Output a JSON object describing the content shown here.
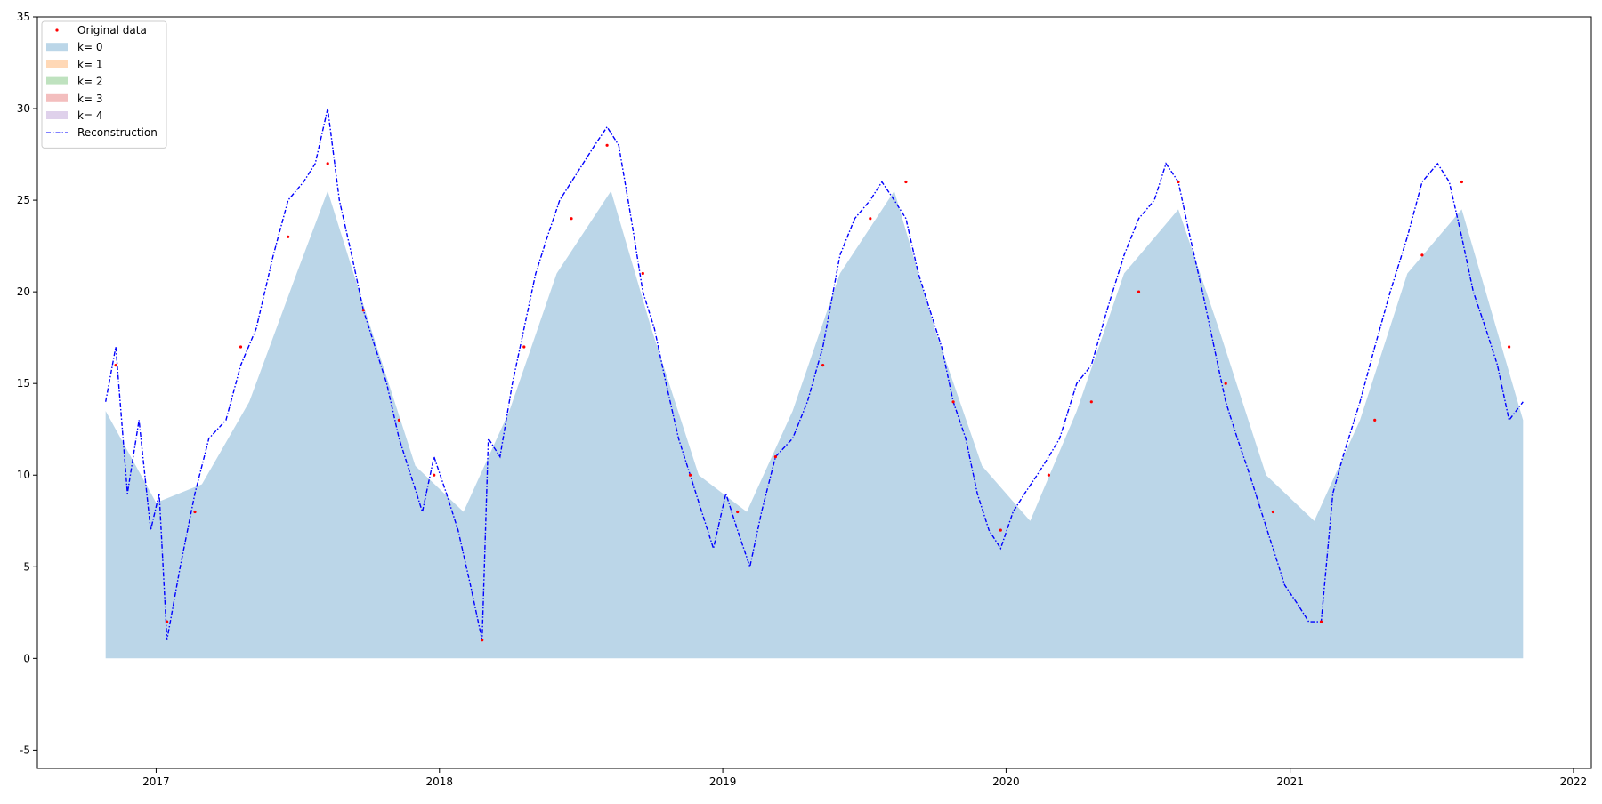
{
  "chart_data": {
    "type": "area",
    "title": "",
    "xlabel": "",
    "ylabel": "",
    "x_range": [
      "2016-08-01",
      "2022-01-24"
    ],
    "ylim": [
      -6,
      35
    ],
    "x_ticks": [
      "2017",
      "2018",
      "2019",
      "2020",
      "2021",
      "2022"
    ],
    "y_ticks": [
      -5,
      0,
      5,
      10,
      15,
      20,
      25,
      30,
      35
    ],
    "grid": false,
    "legend_position": "upper-left",
    "legend": [
      "Original data",
      "k= 0",
      "k= 1",
      "k= 2",
      "k= 3",
      "k= 4",
      "Reconstruction"
    ],
    "colors": {
      "original": "#ff0000",
      "k0": "#1f77b4",
      "k1": "#ff7f0e",
      "k2": "#2ca02c",
      "k3": "#d62728",
      "k4": "#9467bd",
      "reconstruction": "#0000ff"
    },
    "series": [
      {
        "name": "k= 0",
        "type": "area",
        "x": [
          "2016-10-28",
          "2017-01-01",
          "2017-03-01",
          "2017-05-01",
          "2017-07-01",
          "2017-08-10",
          "2017-10-01",
          "2017-12-01",
          "2018-02-01",
          "2018-04-01",
          "2018-06-01",
          "2018-08-10",
          "2018-10-01",
          "2018-12-01",
          "2019-02-01",
          "2019-04-01",
          "2019-06-01",
          "2019-08-10",
          "2019-10-01",
          "2019-12-01",
          "2020-02-01",
          "2020-04-01",
          "2020-06-01",
          "2020-08-10",
          "2020-10-01",
          "2020-12-01",
          "2021-02-01",
          "2021-04-01",
          "2021-06-01",
          "2021-08-10",
          "2021-10-28"
        ],
        "values": [
          13.5,
          8.5,
          9.5,
          14.0,
          21.0,
          25.5,
          18.5,
          10.5,
          8.0,
          13.5,
          21.0,
          25.5,
          18.0,
          10.0,
          8.0,
          13.5,
          21.0,
          25.5,
          18.0,
          10.5,
          7.5,
          13.5,
          21.0,
          24.5,
          18.0,
          10.0,
          7.5,
          13.0,
          21.0,
          24.5,
          13.0
        ]
      },
      {
        "name": "Reconstruction",
        "type": "line",
        "x": [
          "2016-10-28",
          "2016-11-10",
          "2016-11-25",
          "2016-12-10",
          "2016-12-25",
          "2017-01-05",
          "2017-01-15",
          "2017-02-01",
          "2017-02-20",
          "2017-03-10",
          "2017-04-01",
          "2017-04-20",
          "2017-05-10",
          "2017-06-01",
          "2017-06-20",
          "2017-07-10",
          "2017-07-25",
          "2017-08-10",
          "2017-08-25",
          "2017-09-10",
          "2017-09-25",
          "2017-10-10",
          "2017-10-25",
          "2017-11-10",
          "2017-11-25",
          "2017-12-10",
          "2017-12-25",
          "2018-01-10",
          "2018-01-25",
          "2018-02-10",
          "2018-02-25",
          "2018-03-05",
          "2018-03-20",
          "2018-04-05",
          "2018-04-20",
          "2018-05-05",
          "2018-05-20",
          "2018-06-05",
          "2018-06-20",
          "2018-07-05",
          "2018-07-20",
          "2018-08-05",
          "2018-08-20",
          "2018-09-05",
          "2018-09-20",
          "2018-10-05",
          "2018-10-20",
          "2018-11-05",
          "2018-11-20",
          "2018-12-05",
          "2018-12-20",
          "2019-01-05",
          "2019-01-20",
          "2019-02-05",
          "2019-02-20",
          "2019-03-10",
          "2019-04-01",
          "2019-04-20",
          "2019-05-10",
          "2019-06-01",
          "2019-06-20",
          "2019-07-10",
          "2019-07-25",
          "2019-08-10",
          "2019-08-25",
          "2019-09-10",
          "2019-09-25",
          "2019-10-10",
          "2019-10-25",
          "2019-11-10",
          "2019-11-25",
          "2019-12-10",
          "2019-12-25",
          "2020-01-10",
          "2020-01-25",
          "2020-02-10",
          "2020-02-25",
          "2020-03-10",
          "2020-04-01",
          "2020-04-20",
          "2020-05-10",
          "2020-06-01",
          "2020-06-20",
          "2020-07-10",
          "2020-07-25",
          "2020-08-10",
          "2020-08-25",
          "2020-09-10",
          "2020-09-25",
          "2020-10-10",
          "2020-10-25",
          "2020-11-10",
          "2020-11-25",
          "2020-12-10",
          "2020-12-25",
          "2021-01-10",
          "2021-01-25",
          "2021-02-10",
          "2021-02-25",
          "2021-03-10",
          "2021-04-01",
          "2021-04-20",
          "2021-05-10",
          "2021-06-01",
          "2021-06-20",
          "2021-07-10",
          "2021-07-25",
          "2021-08-10",
          "2021-08-25",
          "2021-09-10",
          "2021-09-25",
          "2021-10-10",
          "2021-10-28"
        ],
        "values": [
          14,
          17,
          9,
          13,
          7,
          9,
          1,
          5,
          9,
          12,
          13,
          16,
          18,
          22,
          25,
          26,
          27,
          30,
          25,
          22,
          19,
          17,
          15,
          12,
          10,
          8,
          11,
          9,
          7,
          4,
          1,
          12,
          11,
          15,
          18,
          21,
          23,
          25,
          26,
          27,
          28,
          29,
          28,
          24,
          20,
          18,
          15,
          12,
          10,
          8,
          6,
          9,
          7,
          5,
          8,
          11,
          12,
          14,
          17,
          22,
          24,
          25,
          26,
          25,
          24,
          21,
          19,
          17,
          14,
          12,
          9,
          7,
          6,
          8,
          9,
          10,
          11,
          12,
          15,
          16,
          19,
          22,
          24,
          25,
          27,
          26,
          23,
          20,
          17,
          14,
          12,
          10,
          8,
          6,
          4,
          3,
          2,
          2,
          9,
          11,
          14,
          17,
          20,
          23,
          26,
          27,
          26,
          23,
          20,
          18,
          16,
          13,
          14
        ]
      },
      {
        "name": "Original data",
        "type": "scatter",
        "x": [
          "2016-11-10",
          "2017-01-15",
          "2017-02-20",
          "2017-04-20",
          "2017-06-20",
          "2017-08-10",
          "2017-09-25",
          "2017-11-10",
          "2017-12-25",
          "2018-02-25",
          "2018-04-20",
          "2018-06-20",
          "2018-08-05",
          "2018-09-20",
          "2018-11-20",
          "2019-01-20",
          "2019-03-10",
          "2019-05-10",
          "2019-07-10",
          "2019-08-25",
          "2019-10-25",
          "2019-12-25",
          "2020-02-25",
          "2020-04-20",
          "2020-06-20",
          "2020-08-10",
          "2020-10-10",
          "2020-12-10",
          "2021-02-10",
          "2021-04-20",
          "2021-06-20",
          "2021-08-10",
          "2021-10-10"
        ],
        "values": [
          16,
          2,
          8,
          17,
          23,
          27,
          19,
          13,
          10,
          1,
          17,
          24,
          28,
          21,
          10,
          8,
          11,
          16,
          24,
          26,
          14,
          7,
          10,
          14,
          20,
          26,
          15,
          8,
          2,
          13,
          22,
          26,
          17
        ]
      }
    ]
  }
}
